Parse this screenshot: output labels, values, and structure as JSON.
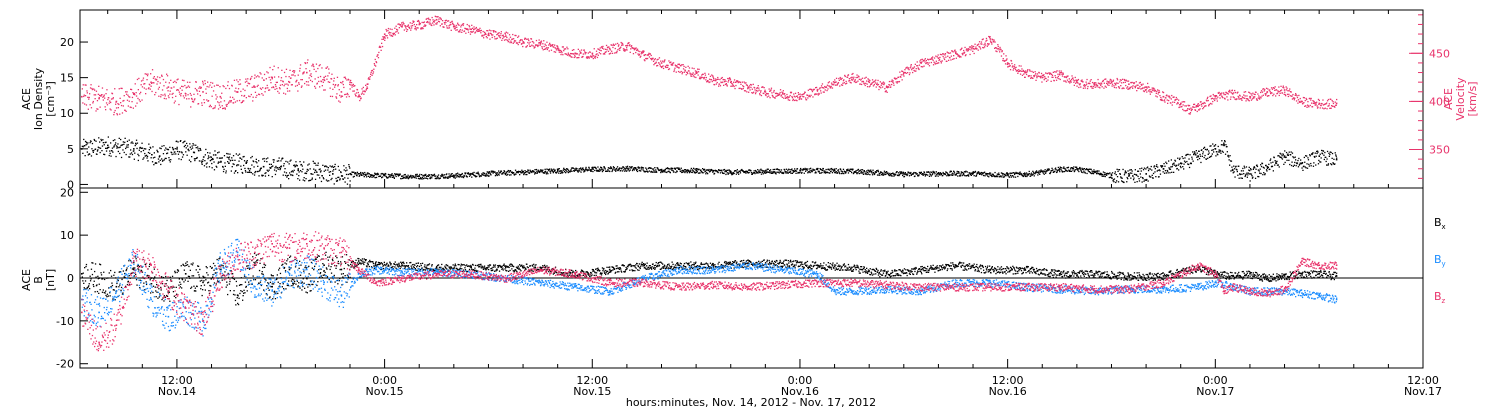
{
  "colors": {
    "black": "#000000",
    "blue": "#1a8cff",
    "pink": "#e8336b"
  },
  "x_axis": {
    "title": "hours:minutes, Nov. 14, 2012 - Nov. 17, 2012",
    "ticks": [
      {
        "t": 12,
        "time": "12:00",
        "day": "Nov.14"
      },
      {
        "t": 24,
        "time": "0:00",
        "day": "Nov.15"
      },
      {
        "t": 36,
        "time": "12:00",
        "day": "Nov.15"
      },
      {
        "t": 48,
        "time": "0:00",
        "day": "Nov.16"
      },
      {
        "t": 60,
        "time": "12:00",
        "day": "Nov.16"
      },
      {
        "t": 72,
        "time": "0:00",
        "day": "Nov.17"
      },
      {
        "t": 84,
        "time": "12:00",
        "day": "Nov.17"
      }
    ]
  },
  "chart_data": [
    {
      "type": "scatter",
      "panel": "top",
      "xlim": [
        6.4,
        84
      ],
      "ylabel_left": [
        "ACE",
        "Ion Density",
        "[cm⁻³]"
      ],
      "ylim_left": [
        -0.5,
        24.5
      ],
      "yticks_left": [
        0,
        5,
        10,
        15,
        20
      ],
      "ylabel_right": [
        "ACE",
        "Velocity",
        "[km/s]"
      ],
      "ylim_right": [
        310,
        495
      ],
      "yticks_right": [
        350,
        400,
        450
      ],
      "series": [
        {
          "axis": "left",
          "color": "#000000",
          "x": [
            6.5,
            8,
            9.5,
            11,
            12,
            13,
            14,
            15,
            16,
            17,
            18,
            19,
            20,
            21,
            22,
            24,
            26,
            28,
            30,
            32,
            34,
            36,
            38,
            40,
            42,
            44,
            46,
            48,
            50,
            52,
            54,
            56,
            58,
            60,
            61,
            62,
            63,
            64,
            65,
            66,
            67,
            68,
            69,
            70,
            71,
            72,
            72.5,
            73,
            74,
            75,
            76,
            77,
            78,
            79
          ],
          "y": [
            5,
            5.5,
            5,
            4,
            5,
            4.5,
            3.5,
            3,
            3,
            2.5,
            2.5,
            2,
            2,
            1.5,
            1.5,
            1.3,
            1.2,
            1.3,
            1.6,
            1.8,
            2,
            2.2,
            2.3,
            2.1,
            2,
            1.8,
            1.9,
            2,
            2,
            1.8,
            1.5,
            1.6,
            1.6,
            1.4,
            1.5,
            1.8,
            2.2,
            2.2,
            1.8,
            1.3,
            1.2,
            1.5,
            2.2,
            3,
            4,
            5,
            5.5,
            2,
            1.5,
            2.5,
            4,
            3,
            4,
            3.5
          ]
        },
        {
          "axis": "right",
          "color": "#e8336b",
          "x": [
            6.5,
            7.5,
            8.5,
            9.5,
            10.5,
            11.5,
            12.5,
            13.5,
            14.5,
            15.5,
            16.5,
            17.5,
            18.5,
            19.5,
            20.5,
            21.5,
            22,
            22.5,
            23,
            24,
            25,
            26,
            27,
            28,
            29,
            30,
            31,
            32,
            33,
            34,
            35,
            36,
            37,
            38,
            39,
            40,
            41,
            42,
            43,
            44,
            45,
            46,
            47,
            48,
            49,
            50,
            51,
            52,
            53,
            54,
            55,
            56,
            57,
            58,
            59,
            60,
            61,
            62,
            63,
            64,
            65,
            66,
            67,
            68,
            69,
            70,
            70.5,
            71,
            72,
            73,
            74,
            75,
            76,
            77,
            78,
            79
          ],
          "y": [
            405,
            403,
            400,
            408,
            420,
            415,
            408,
            410,
            405,
            410,
            415,
            425,
            420,
            430,
            425,
            410,
            420,
            405,
            418,
            470,
            478,
            480,
            485,
            478,
            475,
            470,
            468,
            462,
            460,
            455,
            450,
            450,
            455,
            458,
            448,
            440,
            435,
            430,
            422,
            420,
            415,
            410,
            408,
            405,
            412,
            420,
            425,
            420,
            415,
            430,
            440,
            445,
            450,
            455,
            465,
            440,
            430,
            425,
            428,
            420,
            418,
            420,
            418,
            415,
            405,
            398,
            392,
            395,
            405,
            408,
            405,
            410,
            412,
            400,
            398,
            398
          ]
        }
      ]
    },
    {
      "type": "scatter",
      "panel": "bottom",
      "xlim": [
        6.4,
        84
      ],
      "ylabel_left": [
        "ACE",
        "B",
        "[nT]"
      ],
      "ylim_left": [
        -21,
        21
      ],
      "yticks_left": [
        -20,
        -10,
        0,
        10,
        20
      ],
      "zero_line": true,
      "legend": [
        "Bx",
        "By",
        "Bz"
      ],
      "series": [
        {
          "name": "Bx",
          "color": "#000000",
          "x": [
            6.5,
            7.5,
            8.5,
            9.5,
            10.5,
            11.5,
            12.5,
            13.5,
            14.5,
            15.5,
            16.5,
            17.5,
            18.5,
            19.5,
            20.5,
            21.5,
            22.5,
            23.5,
            25,
            27,
            29,
            31,
            33,
            35,
            37,
            39,
            41,
            43,
            45,
            47,
            49,
            51,
            53,
            55,
            57,
            59,
            61,
            63,
            65,
            67,
            69,
            71,
            72,
            73,
            74,
            75,
            76,
            77,
            78,
            79
          ],
          "y": [
            1,
            0,
            -2,
            2,
            0,
            -3,
            1,
            -1,
            2,
            -4,
            3,
            -2,
            2,
            0,
            3,
            2,
            4,
            3,
            3,
            2.5,
            2.5,
            2.5,
            2.5,
            1,
            2,
            3,
            3,
            3,
            3.5,
            3.5,
            3,
            2.5,
            1,
            2,
            3,
            2,
            2,
            1,
            1,
            0.5,
            0.5,
            2.5,
            1,
            0.5,
            1,
            0,
            0.5,
            1,
            1,
            0.5
          ]
        },
        {
          "name": "By",
          "color": "#1a8cff",
          "x": [
            6.5,
            7.5,
            8.5,
            9.5,
            10.5,
            11.5,
            12.5,
            13.5,
            14.5,
            15.5,
            16.5,
            17.5,
            18.5,
            19.5,
            20.5,
            21.5,
            22.5,
            23.5,
            25,
            27,
            29,
            31,
            33,
            35,
            37,
            39,
            41,
            43,
            45,
            47,
            49,
            50,
            51,
            53,
            55,
            57,
            59,
            61,
            63,
            65,
            67,
            69,
            71,
            72,
            73,
            74,
            75,
            76,
            77,
            78,
            79
          ],
          "y": [
            -5,
            -8,
            -3,
            4,
            -5,
            -9,
            -7,
            -10,
            3,
            6,
            -2,
            -3,
            1,
            2,
            -1,
            -4,
            1,
            2,
            1.5,
            1.5,
            1,
            0,
            -1,
            -2,
            -3,
            0,
            2,
            2,
            3,
            2,
            1,
            -3,
            -3,
            -2.5,
            -3,
            -1,
            -1,
            -2,
            -2.5,
            -3,
            -2.5,
            -2.5,
            -2,
            -1,
            -2,
            -3,
            -3,
            -3,
            -3.5,
            -4,
            -5
          ]
        },
        {
          "name": "Bz",
          "color": "#e8336b",
          "x": [
            6.5,
            7.5,
            8.5,
            9.5,
            10.5,
            11.5,
            12.5,
            13.5,
            14.5,
            15.5,
            16.5,
            17.5,
            18.5,
            19.5,
            20.5,
            21.5,
            22.5,
            23.5,
            25,
            27,
            29,
            31,
            33,
            35,
            37,
            39,
            41,
            43,
            45,
            47,
            49,
            51,
            53,
            55,
            57,
            59,
            61,
            63,
            65,
            67,
            69,
            71,
            72,
            72.5,
            73,
            74,
            75,
            76,
            77,
            78,
            79
          ],
          "y": [
            -8,
            -15,
            -11,
            4,
            3,
            -3,
            -7,
            -10,
            1,
            5,
            6,
            8,
            7,
            8,
            7,
            6,
            2,
            -1,
            0,
            1,
            1,
            0,
            2,
            1,
            -1,
            -1,
            -2,
            -1.5,
            -2,
            -1.5,
            -1,
            -1,
            -1.5,
            -2,
            -2,
            -2,
            -2,
            -2,
            -2.5,
            -2.5,
            -1,
            3,
            1,
            -3,
            -2,
            -3,
            -3.5,
            -2.5,
            4,
            3,
            3
          ]
        }
      ]
    }
  ]
}
